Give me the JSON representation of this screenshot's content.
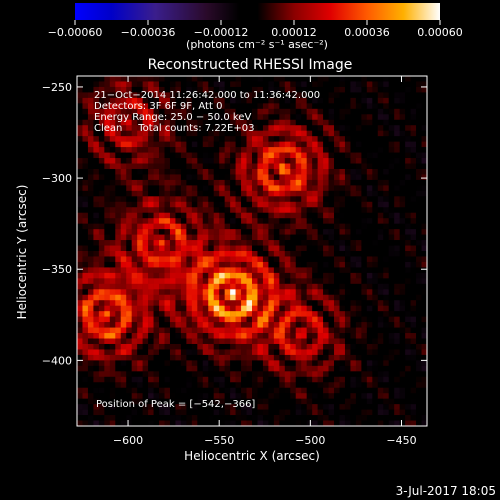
{
  "chart_data": {
    "type": "heatmap",
    "title": "Reconstructed RHESSI Image",
    "xlabel": "Heliocentric X (arcsec)",
    "ylabel": "Heliocentric Y (arcsec)",
    "xlim": [
      -628,
      -436
    ],
    "ylim": [
      -436,
      -244
    ],
    "x_ticks": [
      -600,
      -550,
      -500,
      -450
    ],
    "x_tick_labels": [
      "−600",
      "−550",
      "−500",
      "−450"
    ],
    "y_ticks": [
      -250,
      -300,
      -350,
      -400
    ],
    "y_tick_labels": [
      "−250",
      "−300",
      "−350",
      "−400"
    ],
    "colorbar": {
      "range": [
        -0.0006,
        0.0006
      ],
      "ticks": [
        -0.0006,
        -0.00036,
        -0.00012,
        0.00012,
        0.00036,
        0.0006
      ],
      "tick_labels": [
        "−0.00060",
        "−0.00036",
        "−0.00012",
        "0.00012",
        "0.00036",
        "0.00060"
      ],
      "unit_label": "(photons cm⁻² s⁻¹ asec⁻²)"
    },
    "annotations": [
      "21−Oct−2014 11:26:42.000 to 11:36:42.000",
      "Detectors: 3F 6F 9F, Att 0",
      "Energy Range: 25.0 − 50.0 keV",
      "Clean     Total counts: 7.22E+03"
    ],
    "peak": {
      "x": -542,
      "y": -366,
      "label": "Position of Peak = [−542,−366]"
    },
    "hotspots": [
      {
        "x": -543,
        "y": -364,
        "value": 0.0006
      },
      {
        "x": -515,
        "y": -295,
        "value": 0.00045
      },
      {
        "x": -612,
        "y": -375,
        "value": 0.00045
      },
      {
        "x": -582,
        "y": -335,
        "value": 0.00036
      },
      {
        "x": -600,
        "y": -270,
        "value": 0.0003
      },
      {
        "x": -505,
        "y": -385,
        "value": 0.0003
      }
    ],
    "grid": false
  },
  "footer": {
    "date": "3-Jul-2017 18:05"
  }
}
